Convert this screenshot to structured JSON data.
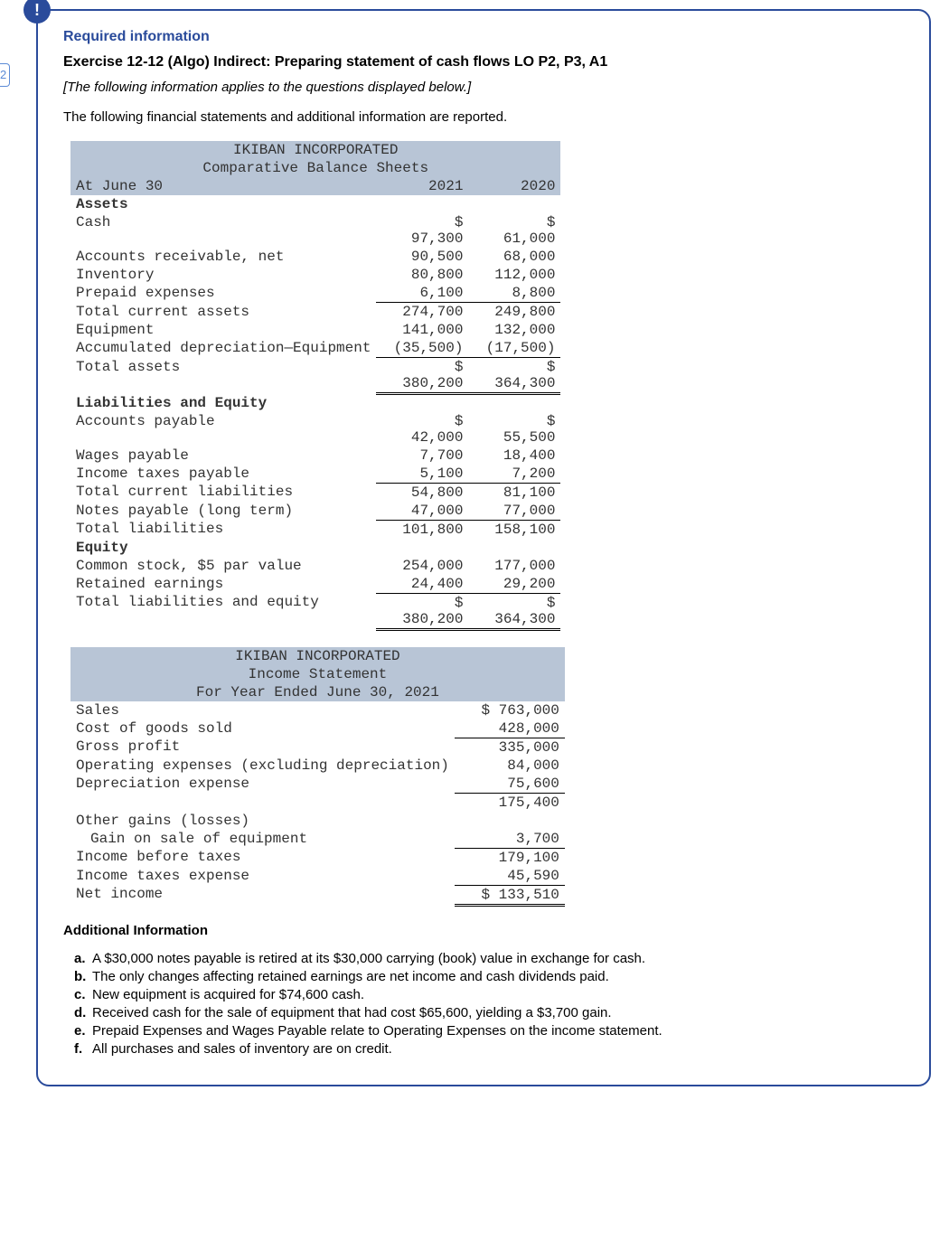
{
  "badge": "!",
  "left_tab": "2",
  "required_info": "Required information",
  "exercise_title": "Exercise 12-12 (Algo) Indirect: Preparing statement of cash flows LO P2, P3, A1",
  "italic_note": "[The following information applies to the questions displayed below.]",
  "intro": "The following financial statements and additional information are reported.",
  "balance_sheet": {
    "title1": "IKIBAN INCORPORATED",
    "title2": "Comparative Balance Sheets",
    "date_label": "At June 30",
    "col1": "2021",
    "col2": "2020",
    "assets_hdr": "Assets",
    "rows": [
      {
        "label": "Cash",
        "v1": "$\n97,300",
        "v2": "$\n61,000"
      },
      {
        "label": "Accounts receivable, net",
        "v1": "90,500",
        "v2": "68,000"
      },
      {
        "label": "Inventory",
        "v1": "80,800",
        "v2": "112,000"
      },
      {
        "label": "Prepaid expenses",
        "v1": "6,100",
        "v2": "8,800",
        "underline": true
      },
      {
        "label": "Total current assets",
        "v1": "274,700",
        "v2": "249,800"
      },
      {
        "label": "Equipment",
        "v1": "141,000",
        "v2": "132,000"
      },
      {
        "label": "Accumulated depreciation—Equipment",
        "v1": "(35,500)",
        "v2": "(17,500)",
        "underline": true
      },
      {
        "label": "Total assets",
        "v1": "$\n380,200",
        "v2": "$\n364,300",
        "double": true
      }
    ],
    "liab_hdr": "Liabilities and Equity",
    "rows2": [
      {
        "label": "Accounts payable",
        "v1": "$\n42,000",
        "v2": "$\n55,500"
      },
      {
        "label": "Wages payable",
        "v1": "7,700",
        "v2": "18,400"
      },
      {
        "label": "Income taxes payable",
        "v1": "5,100",
        "v2": "7,200",
        "underline": true
      },
      {
        "label": "Total current liabilities",
        "v1": "54,800",
        "v2": "81,100"
      },
      {
        "label": "Notes payable (long term)",
        "v1": "47,000",
        "v2": "77,000",
        "underline": true
      },
      {
        "label": "Total liabilities",
        "v1": "101,800",
        "v2": "158,100"
      }
    ],
    "equity_hdr": "Equity",
    "rows3": [
      {
        "label": "Common stock, $5 par value",
        "v1": "254,000",
        "v2": "177,000"
      },
      {
        "label": "Retained earnings",
        "v1": "24,400",
        "v2": "29,200",
        "underline": true
      },
      {
        "label": "Total liabilities and equity",
        "v1": "$\n380,200",
        "v2": "$\n364,300",
        "double": true
      }
    ]
  },
  "income_stmt": {
    "title1": "IKIBAN INCORPORATED",
    "title2": "Income Statement",
    "title3": "For Year Ended June 30, 2021",
    "rows": [
      {
        "label": "Sales",
        "v": "$ 763,000"
      },
      {
        "label": "Cost of goods sold",
        "v": "428,000",
        "underline": true
      },
      {
        "label": "Gross profit",
        "v": "335,000"
      },
      {
        "label": "Operating expenses (excluding depreciation)",
        "v": "84,000"
      },
      {
        "label": "Depreciation expense",
        "v": "75,600",
        "underline": true
      },
      {
        "label": "",
        "v": "175,400"
      },
      {
        "label": "Other gains (losses)",
        "v": ""
      },
      {
        "label": "  Gain on sale of equipment",
        "v": "3,700",
        "underline": true
      },
      {
        "label": "Income before taxes",
        "v": "179,100"
      },
      {
        "label": "Income taxes expense",
        "v": "45,590",
        "underline": true
      },
      {
        "label": "Net income",
        "v": "$ 133,510",
        "double": true
      }
    ]
  },
  "addl_title": "Additional Information",
  "addl": [
    {
      "l": "a.",
      "t": "A $30,000 notes payable is retired at its $30,000 carrying (book) value in exchange for cash."
    },
    {
      "l": "b.",
      "t": "The only changes affecting retained earnings are net income and cash dividends paid."
    },
    {
      "l": "c.",
      "t": "New equipment is acquired for $74,600 cash."
    },
    {
      "l": "d.",
      "t": "Received cash for the sale of equipment that had cost $65,600, yielding a $3,700 gain."
    },
    {
      "l": "e.",
      "t": "Prepaid Expenses and Wages Payable relate to Operating Expenses on the income statement."
    },
    {
      "l": "f.",
      "t": "All purchases and sales of inventory are on credit."
    }
  ]
}
